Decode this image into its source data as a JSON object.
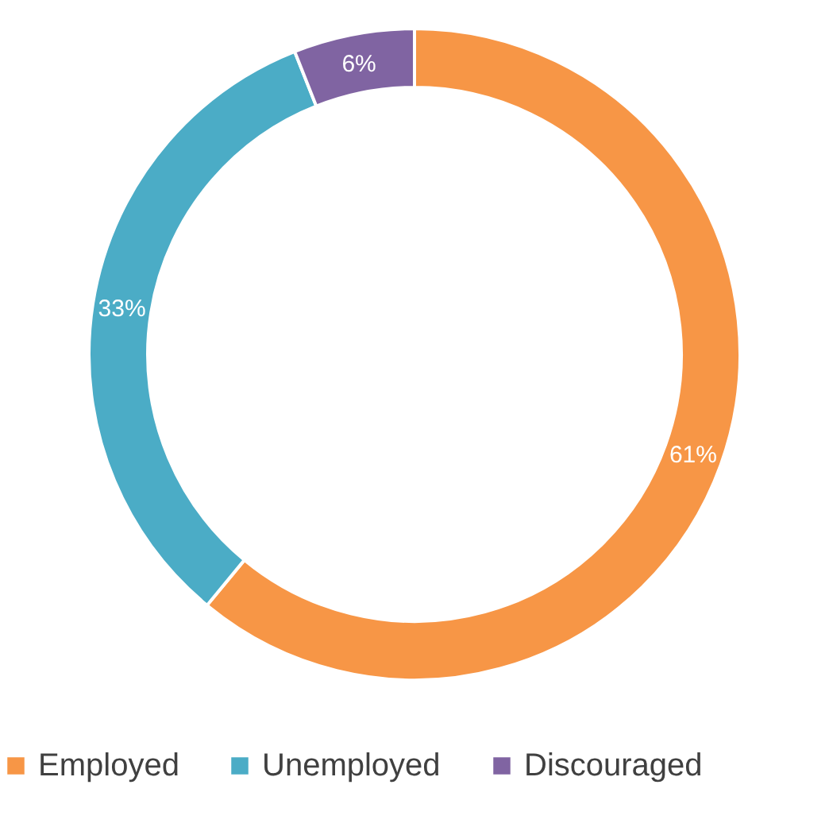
{
  "chart_data": {
    "type": "donut",
    "categories": [
      "Employed",
      "Unemployed",
      "Discouraged"
    ],
    "values": [
      61,
      33,
      6
    ],
    "colors": [
      "#f79646",
      "#4bacc6",
      "#8064a2"
    ],
    "value_labels": [
      "61%",
      "33%",
      "6%"
    ],
    "legend": "bottom"
  }
}
